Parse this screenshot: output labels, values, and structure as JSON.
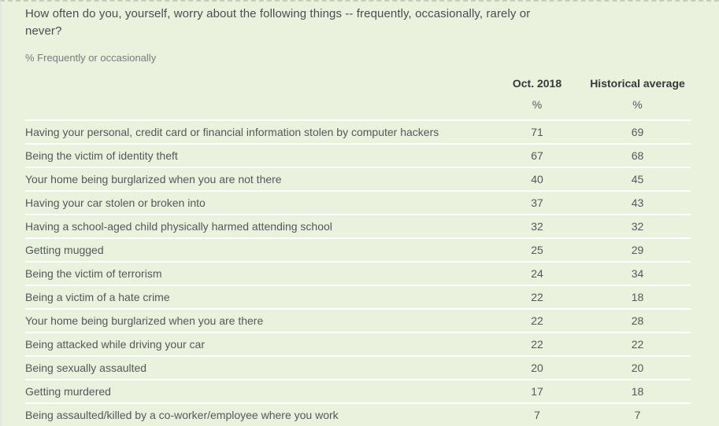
{
  "panel": {
    "title": "How often do you, yourself, worry about the following things -- frequently, occasionally, rarely or never?",
    "subtitle": "% Frequently or occasionally"
  },
  "colors": {
    "background": "#eaf1dd",
    "row_divider": "#ffffff",
    "body_text": "#54585a",
    "header_text": "#37393b",
    "subtitle_text": "#787b7d"
  },
  "chart_data": {
    "type": "table",
    "title": "How often do you, yourself, worry about the following things -- frequently, occasionally, rarely or never?",
    "subtitle": "% Frequently or occasionally",
    "columns": [
      "Oct. 2018",
      "Historical average"
    ],
    "unit_labels": [
      "%",
      "%"
    ],
    "rows": [
      {
        "label": "Having your personal, credit card or financial information stolen by computer hackers",
        "values": [
          71,
          69
        ]
      },
      {
        "label": "Being the victim of identity theft",
        "values": [
          67,
          68
        ]
      },
      {
        "label": "Your home being burglarized when you are not there",
        "values": [
          40,
          45
        ]
      },
      {
        "label": "Having your car stolen or broken into",
        "values": [
          37,
          43
        ]
      },
      {
        "label": "Having a school-aged child physically harmed attending school",
        "values": [
          32,
          32
        ]
      },
      {
        "label": "Getting mugged",
        "values": [
          25,
          29
        ]
      },
      {
        "label": "Being the victim of terrorism",
        "values": [
          24,
          34
        ]
      },
      {
        "label": "Being a victim of a hate crime",
        "values": [
          22,
          18
        ]
      },
      {
        "label": "Your home being burglarized when you are there",
        "values": [
          22,
          28
        ]
      },
      {
        "label": "Being attacked while driving your car",
        "values": [
          22,
          22
        ]
      },
      {
        "label": "Being sexually assaulted",
        "values": [
          20,
          20
        ]
      },
      {
        "label": "Getting murdered",
        "values": [
          17,
          18
        ]
      },
      {
        "label": "Being assaulted/killed by a co-worker/employee where you work",
        "values": [
          7,
          7
        ]
      }
    ]
  }
}
